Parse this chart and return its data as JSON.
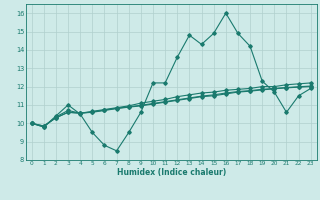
{
  "x": [
    0,
    1,
    2,
    3,
    4,
    5,
    6,
    7,
    8,
    9,
    10,
    11,
    12,
    13,
    14,
    15,
    16,
    17,
    18,
    19,
    20,
    21,
    22,
    23
  ],
  "line1": [
    10.0,
    9.8,
    10.4,
    11.0,
    10.5,
    9.5,
    8.8,
    8.5,
    9.5,
    10.6,
    12.2,
    12.2,
    13.6,
    14.8,
    14.3,
    14.9,
    16.0,
    14.9,
    14.2,
    12.3,
    11.7,
    10.6,
    11.5,
    11.9
  ],
  "line2": [
    10.0,
    9.8,
    10.35,
    10.7,
    10.55,
    10.65,
    10.75,
    10.85,
    10.95,
    11.1,
    11.2,
    11.3,
    11.45,
    11.55,
    11.65,
    11.7,
    11.8,
    11.85,
    11.9,
    12.0,
    12.0,
    12.1,
    12.15,
    12.2
  ],
  "line3": [
    10.0,
    9.85,
    10.3,
    10.6,
    10.55,
    10.6,
    10.7,
    10.8,
    10.88,
    10.95,
    11.05,
    11.15,
    11.25,
    11.35,
    11.45,
    11.5,
    11.6,
    11.7,
    11.75,
    11.82,
    11.88,
    11.93,
    11.97,
    12.0
  ],
  "line4": [
    10.0,
    9.85,
    10.3,
    10.6,
    10.55,
    10.62,
    10.72,
    10.82,
    10.9,
    10.98,
    11.08,
    11.18,
    11.28,
    11.38,
    11.48,
    11.55,
    11.65,
    11.73,
    11.78,
    11.85,
    11.9,
    11.95,
    11.99,
    12.03
  ],
  "color": "#1a7a6e",
  "bg_color": "#ceeae8",
  "grid_color": "#b0d0ce",
  "xlabel": "Humidex (Indice chaleur)",
  "ylim": [
    8,
    16.5
  ],
  "xlim": [
    -0.5,
    23.5
  ],
  "yticks": [
    8,
    9,
    10,
    11,
    12,
    13,
    14,
    15,
    16
  ],
  "xticks": [
    0,
    1,
    2,
    3,
    4,
    5,
    6,
    7,
    8,
    9,
    10,
    11,
    12,
    13,
    14,
    15,
    16,
    17,
    18,
    19,
    20,
    21,
    22,
    23
  ]
}
